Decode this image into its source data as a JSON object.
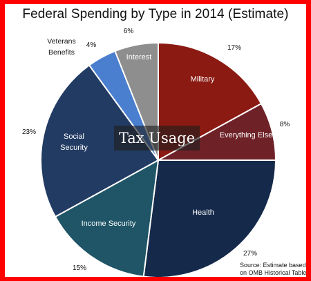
{
  "chart_data": {
    "type": "pie",
    "title": "Federal Spending by Type in 2014 (Estimate)",
    "slices": [
      {
        "label": "Military",
        "value": 17,
        "pct_text": "17%",
        "color": "#8b1a12"
      },
      {
        "label": "Everything Else",
        "value": 8,
        "pct_text": "8%",
        "color": "#6e2228"
      },
      {
        "label": "Health",
        "value": 27,
        "pct_text": "27%",
        "color": "#15294a"
      },
      {
        "label": "Income Security",
        "value": 15,
        "pct_text": "15%",
        "color": "#1f5566"
      },
      {
        "label": "Social Security",
        "value": 23,
        "pct_text": "23%",
        "color": "#223b63"
      },
      {
        "label": "Veterans Benefits",
        "value": 4,
        "pct_text": "4%",
        "color": "#4a7fcf"
      },
      {
        "label": "Interest",
        "value": 6,
        "pct_text": "6%",
        "color": "#8e8e8e"
      }
    ],
    "source_lines": [
      "Source: Estimate based",
      "on OMB Historical Tables"
    ]
  },
  "overlay_text": "Tax Usage"
}
